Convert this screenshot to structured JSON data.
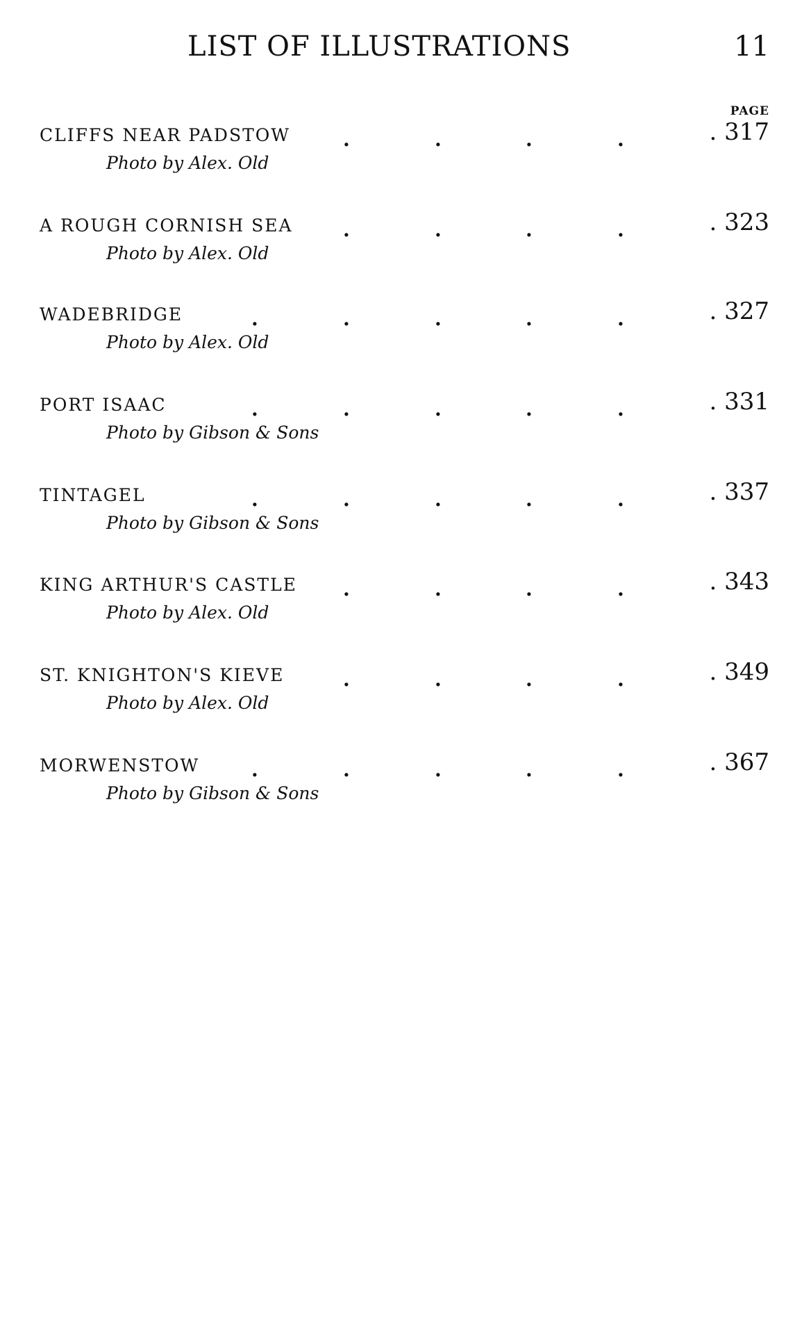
{
  "header": {
    "title": "LIST OF ILLUSTRATIONS",
    "page_number": "11",
    "page_label": "PAGE"
  },
  "entries": [
    {
      "title": "CLIFFS NEAR PADSTOW",
      "credit": "Photo by Alex. Old",
      "page": ". 317"
    },
    {
      "title": "A ROUGH CORNISH SEA",
      "credit": "Photo by Alex. Old",
      "page": ". 323"
    },
    {
      "title": "WADEBRIDGE",
      "credit": "Photo by Alex. Old",
      "page": ". 327"
    },
    {
      "title": "PORT ISAAC",
      "credit": "Photo by Gibson & Sons",
      "page": ". 331"
    },
    {
      "title": "TINTAGEL",
      "credit": "Photo by Gibson & Sons",
      "page": ". 337"
    },
    {
      "title": "KING ARTHUR'S CASTLE",
      "credit": "Photo by Alex. Old",
      "page": ". 343"
    },
    {
      "title": "ST. KNIGHTON'S KIEVE",
      "credit": "Photo by Alex. Old",
      "page": ". 349"
    },
    {
      "title": "MORWENSTOW",
      "credit": "Photo by Gibson & Sons",
      "page": ". 367"
    }
  ]
}
